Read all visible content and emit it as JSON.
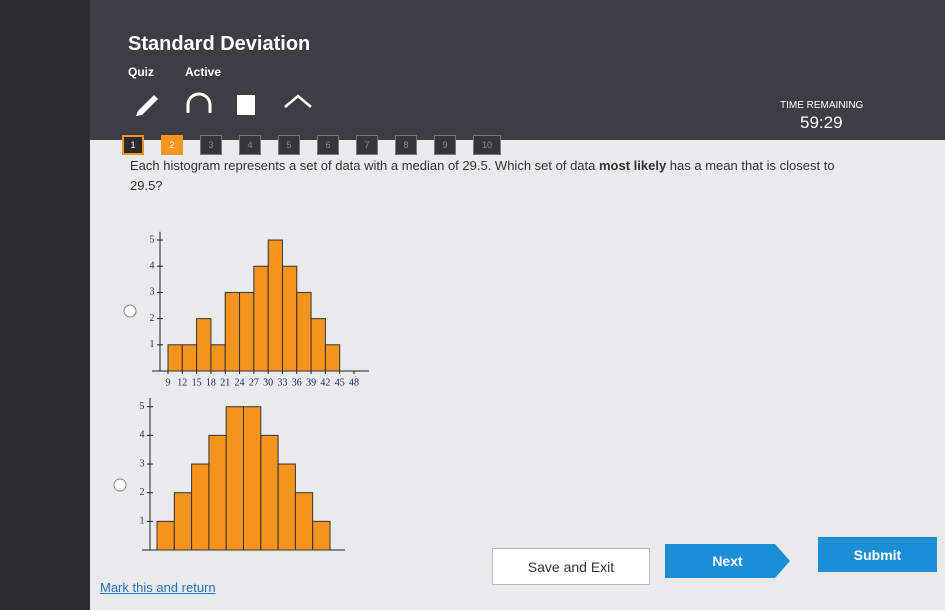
{
  "header": {
    "title": "Standard Deviation",
    "type": "Quiz",
    "status": "Active"
  },
  "timer": {
    "label": "TIME REMAINING",
    "value": "59:29"
  },
  "question_numbers": [
    "1",
    "2",
    "3",
    "4",
    "5",
    "6",
    "7",
    "8",
    "9",
    "10"
  ],
  "question": {
    "text_before": "Each histogram represents a set of data with a median of 29.5. Which set of data ",
    "emphasis": "most likely",
    "text_after": " has a mean that is closest to 29.5?"
  },
  "chart_data": [
    {
      "type": "histogram",
      "bins": [
        9,
        12,
        15,
        18,
        21,
        24,
        27,
        30,
        33,
        36,
        39,
        42,
        45
      ],
      "values": [
        1,
        1,
        2,
        1,
        3,
        3,
        4,
        5,
        4,
        3,
        2,
        1
      ],
      "color": "#f7941d",
      "xlim": [
        9,
        48
      ],
      "xticks": [
        9,
        12,
        15,
        18,
        21,
        24,
        27,
        30,
        33,
        36,
        39,
        42,
        45,
        48
      ],
      "ylim": [
        0,
        5.2
      ],
      "yticks": [
        1,
        2,
        3,
        4,
        5
      ]
    },
    {
      "type": "bar",
      "categories": [
        null,
        null,
        null,
        null,
        null,
        null,
        null,
        null,
        null,
        null
      ],
      "values": [
        1,
        2,
        3,
        4,
        5,
        5,
        4,
        3,
        2,
        1
      ],
      "color": "#f7941d",
      "ylim": [
        0,
        5.2
      ],
      "yticks": [
        1,
        2,
        3,
        4,
        5
      ]
    }
  ],
  "footer": {
    "mark": "Mark this and return",
    "save": "Save and Exit",
    "next": "Next",
    "submit": "Submit"
  }
}
